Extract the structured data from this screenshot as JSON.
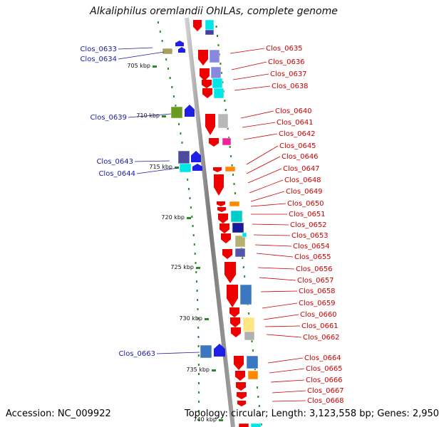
{
  "title": "Alkaliphilus oremlandii OhILAs, complete genome",
  "footer": {
    "accession": "Accession: NC_009922",
    "summary": "Topology: circular; Length: 3,123,558 bp; Genes: 2,950"
  },
  "colors": {
    "backbone": "#8a8a8a",
    "dots": "#2a8a2a",
    "left_label": "#1a1aa6",
    "right_label": "#cc0000",
    "forward_arrow": "#1f1fe6",
    "reverse_arrow": "#ee0000"
  },
  "ticks": [
    "705 kbp",
    "710 kbp",
    "715 kbp",
    "720 kbp",
    "725 kbp",
    "730 kbp",
    "735 kbp",
    "740 kbp"
  ],
  "left_genes": [
    "Clos_0633",
    "Clos_0634",
    "Clos_0639",
    "Clos_0643",
    "Clos_0644",
    "Clos_0663"
  ],
  "right_genes": [
    "Clos_0635",
    "Clos_0636",
    "Clos_0637",
    "Clos_0638",
    "Clos_0640",
    "Clos_0641",
    "Clos_0642",
    "Clos_0645",
    "Clos_0646",
    "Clos_0647",
    "Clos_0648",
    "Clos_0649",
    "Clos_0650",
    "Clos_0651",
    "Clos_0652",
    "Clos_0653",
    "Clos_0654",
    "Clos_0655",
    "Clos_0656",
    "Clos_0657",
    "Clos_0658",
    "Clos_0659",
    "Clos_0660",
    "Clos_0661",
    "Clos_0662",
    "Clos_0664",
    "Clos_0665",
    "Clos_0666",
    "Clos_0667",
    "Clos_0668"
  ]
}
